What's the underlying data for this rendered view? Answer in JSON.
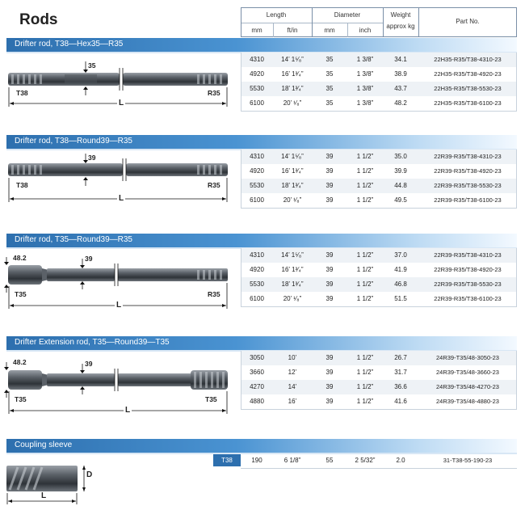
{
  "page": {
    "title": "Rods"
  },
  "header": {
    "length": "Length",
    "diameter": "Diameter",
    "weight": "Weight",
    "weight_unit": "approx kg",
    "part_no": "Part No.",
    "mm": "mm",
    "ft_in": "ft/in",
    "dia_mm": "mm",
    "inch": "inch"
  },
  "sections": [
    {
      "title": "Drifter rod, T38—Hex35—R35",
      "labels": {
        "left": "T38",
        "right": "R35",
        "dia": "35",
        "length": "L"
      },
      "rows": [
        {
          "mm": "4310",
          "ft": "14’ 1⁵⁄₈”",
          "dmm": "35",
          "inch": "1 3/8”",
          "wt": "34.1",
          "pn": "22H35-R35/T38-4310-23"
        },
        {
          "mm": "4920",
          "ft": "16’ 1³⁄₄”",
          "dmm": "35",
          "inch": "1 3/8”",
          "wt": "38.9",
          "pn": "22H35-R35/T38-4920-23"
        },
        {
          "mm": "5530",
          "ft": "18’ 1³⁄₄”",
          "dmm": "35",
          "inch": "1 3/8”",
          "wt": "43.7",
          "pn": "22H35-R35/T38-5530-23"
        },
        {
          "mm": "6100",
          "ft": "20’ ¹⁄₈”",
          "dmm": "35",
          "inch": "1 3/8”",
          "wt": "48.2",
          "pn": "22H35-R35/T38-6100-23"
        }
      ]
    },
    {
      "title": "Drifter rod, T38—Round39—R35",
      "labels": {
        "left": "T38",
        "right": "R35",
        "dia": "39",
        "length": "L"
      },
      "rows": [
        {
          "mm": "4310",
          "ft": "14’ 1⁵⁄₈”",
          "dmm": "39",
          "inch": "1 1/2”",
          "wt": "35.0",
          "pn": "22R39-R35/T38-4310-23"
        },
        {
          "mm": "4920",
          "ft": "16’ 1³⁄₄”",
          "dmm": "39",
          "inch": "1 1/2”",
          "wt": "39.9",
          "pn": "22R39-R35/T38-4920-23"
        },
        {
          "mm": "5530",
          "ft": "18’ 1³⁄₄”",
          "dmm": "39",
          "inch": "1 1/2”",
          "wt": "44.8",
          "pn": "22R39-R35/T38-5530-23"
        },
        {
          "mm": "6100",
          "ft": "20’ ¹⁄₈”",
          "dmm": "39",
          "inch": "1 1/2”",
          "wt": "49.5",
          "pn": "22R39-R35/T38-6100-23"
        }
      ]
    },
    {
      "title": "Drifter rod, T35—Round39—R35",
      "labels": {
        "left": "T35",
        "right": "R35",
        "dia": "39",
        "dia2": "48.2",
        "length": "L"
      },
      "rows": [
        {
          "mm": "4310",
          "ft": "14’ 1⁵⁄₈”",
          "dmm": "39",
          "inch": "1 1/2”",
          "wt": "37.0",
          "pn": "22R39-R35/T38-4310-23"
        },
        {
          "mm": "4920",
          "ft": "16’ 1³⁄₄”",
          "dmm": "39",
          "inch": "1 1/2”",
          "wt": "41.9",
          "pn": "22R39-R35/T38-4920-23"
        },
        {
          "mm": "5530",
          "ft": "18’ 1³⁄₄”",
          "dmm": "39",
          "inch": "1 1/2”",
          "wt": "46.8",
          "pn": "22R39-R35/T38-5530-23"
        },
        {
          "mm": "6100",
          "ft": "20’ ¹⁄₈”",
          "dmm": "39",
          "inch": "1 1/2”",
          "wt": "51.5",
          "pn": "22R39-R35/T38-6100-23"
        }
      ]
    },
    {
      "title": "Drifter Extension rod, T35—Round39—T35",
      "labels": {
        "left": "T35",
        "right": "T35",
        "dia": "39",
        "dia2": "48.2",
        "length": "L"
      },
      "rows": [
        {
          "mm": "3050",
          "ft": "10’",
          "dmm": "39",
          "inch": "1 1/2”",
          "wt": "26.7",
          "pn": "24R39-T35/48-3050-23"
        },
        {
          "mm": "3660",
          "ft": "12’",
          "dmm": "39",
          "inch": "1 1/2”",
          "wt": "31.7",
          "pn": "24R39-T35/48-3660-23"
        },
        {
          "mm": "4270",
          "ft": "14’",
          "dmm": "39",
          "inch": "1 1/2”",
          "wt": "36.6",
          "pn": "24R39-T35/48-4270-23"
        },
        {
          "mm": "4880",
          "ft": "16’",
          "dmm": "39",
          "inch": "1 1/2”",
          "wt": "41.6",
          "pn": "24R39-T35/48-4880-23"
        }
      ]
    }
  ],
  "coupling": {
    "title": "Coupling sleeve",
    "tag": "T38",
    "labels": {
      "d": "D",
      "length": "L"
    },
    "row": {
      "mm": "190",
      "ft": "6 1/8”",
      "dmm": "55",
      "inch": "2 5/32”",
      "wt": "2.0",
      "pn": "31-T38-55-190-23"
    }
  },
  "colors": {
    "band_start": "#2d6fae",
    "band_end": "#f3f9ff",
    "rod_dark": "#3c4147",
    "rod_light": "#8d939a"
  }
}
